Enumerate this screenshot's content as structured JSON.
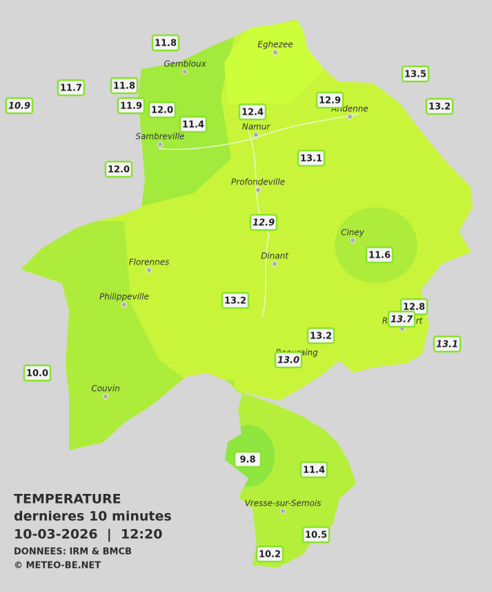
{
  "towns": [
    "Eghezee",
    "Gembloux",
    "Andenne",
    "Namur",
    "Sambreville",
    "Profondeville",
    "Ciney",
    "Dinant",
    "Florennes",
    "Philippeville",
    "Rochefort",
    "Beauraing",
    "Couvin",
    "Vresse-sur-Semois"
  ],
  "stations": [
    {
      "value": "11.8"
    },
    {
      "value": "11.7"
    },
    {
      "value": "11.8"
    },
    {
      "value": "10.9",
      "italic": true
    },
    {
      "value": "11.9"
    },
    {
      "value": "12.0"
    },
    {
      "value": "11.4"
    },
    {
      "value": "12.4"
    },
    {
      "value": "12.9"
    },
    {
      "value": "13.5"
    },
    {
      "value": "13.2"
    },
    {
      "value": "12.0"
    },
    {
      "value": "13.1"
    },
    {
      "value": "12.9",
      "italic": true
    },
    {
      "value": "11.6"
    },
    {
      "value": "13.2"
    },
    {
      "value": "12.8"
    },
    {
      "value": "13.7",
      "italic": true
    },
    {
      "value": "13.2"
    },
    {
      "value": "13.1",
      "italic": true
    },
    {
      "value": "13.0",
      "italic": true
    },
    {
      "value": "10.0"
    },
    {
      "value": "9.8"
    },
    {
      "value": "11.4"
    },
    {
      "value": "10.5"
    },
    {
      "value": "10.2"
    }
  ],
  "legend": {
    "title": "TEMPERATURE",
    "subtitle": "dernieres 10 minutes",
    "date": "10-03-2026  |  12:20",
    "source": "DONNEES: IRM & BMCB",
    "copyright": "© METEO-BE.NET"
  }
}
